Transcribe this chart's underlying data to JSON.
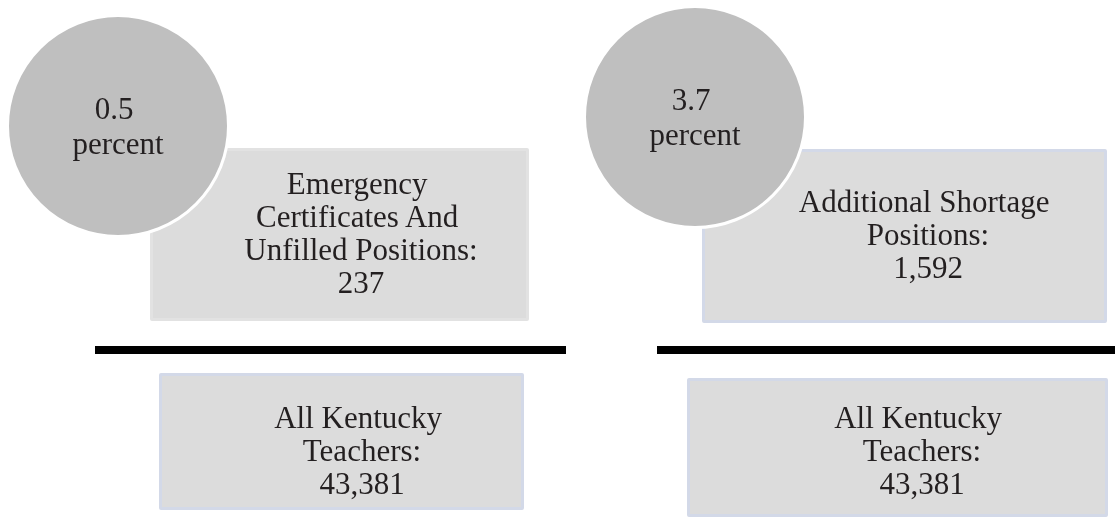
{
  "chart_data": [
    {
      "type": "other",
      "categories": [
        null,
        null
      ],
      "values": [
        237,
        43381
      ],
      "value_labels": [
        "237",
        "43,381"
      ],
      "colors": [
        "#dcdcdc",
        "#dcdcdc"
      ],
      "annotations": [
        "0.5 percent",
        "Emergency Certificates And Unfilled Positions:",
        "All Kentucky Teachers:"
      ]
    },
    {
      "type": "other",
      "categories": [
        null,
        null
      ],
      "values": [
        1592,
        43381
      ],
      "value_labels": [
        "1,592",
        "43,381"
      ],
      "colors": [
        "#dcdcdc",
        "#dcdcdc"
      ],
      "annotations": [
        "3.7 percent",
        "Additional Shortage Positions:",
        "All Kentucky Teachers:"
      ]
    }
  ]
}
